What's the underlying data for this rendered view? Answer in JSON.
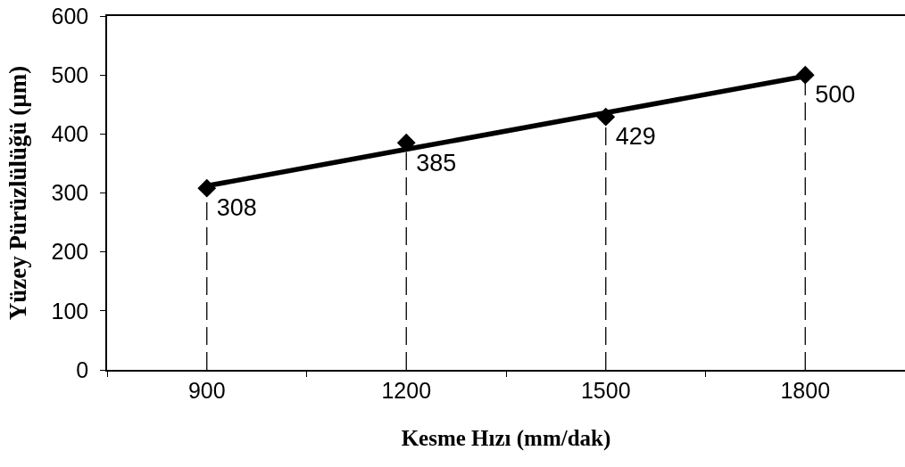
{
  "chart_data": {
    "type": "lollipop",
    "xlabel": "Kesme Hızı (mm/dak)",
    "ylabel": "Yüzey Pürüzlülüğü (µm)",
    "categories": [
      "900",
      "1200",
      "1500",
      "1800"
    ],
    "ylim": [
      0,
      600
    ],
    "yticks": [
      0,
      100,
      200,
      300,
      400,
      500,
      600
    ],
    "series": [
      {
        "type": "line",
        "values": [
          312,
          374,
          436,
          498
        ],
        "color": "#000000",
        "marker": "none",
        "line_style": "solid"
      },
      {
        "color": "#000000",
        "values": [
          308,
          385,
          429,
          500
        ],
        "marker": "diamond",
        "line_style": "dashed",
        "data_labels": true
      }
    ]
  }
}
